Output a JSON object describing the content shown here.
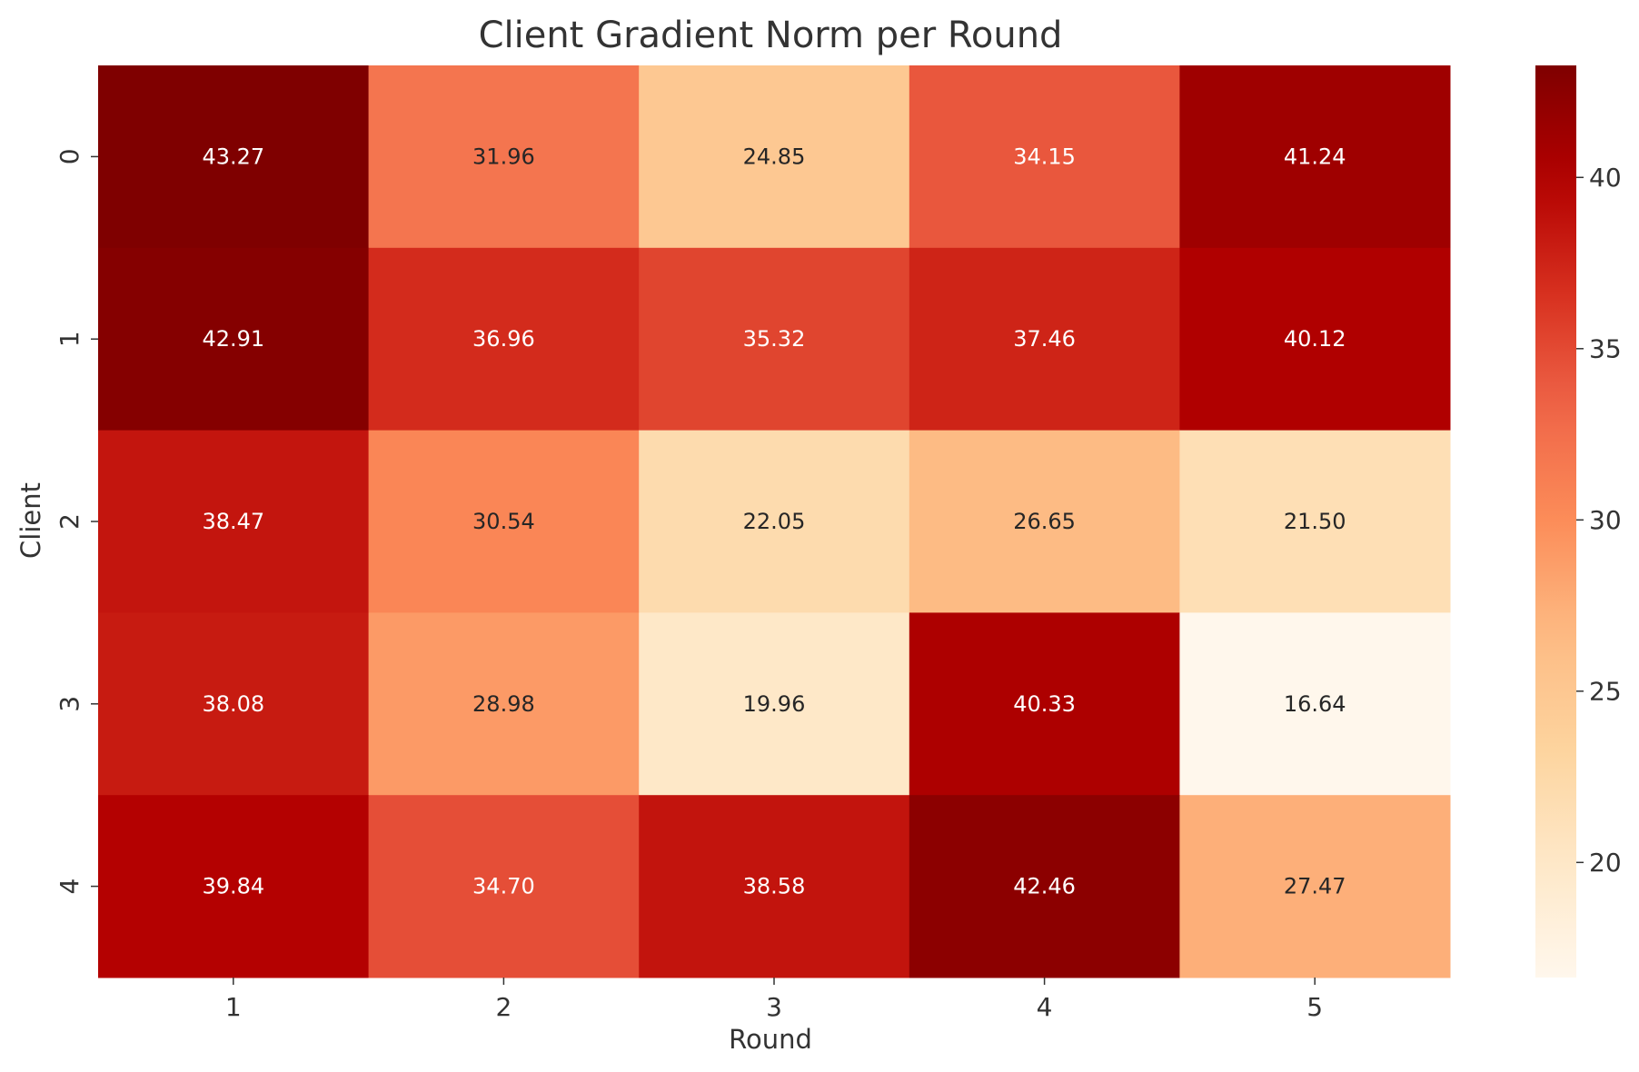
{
  "chart_data": {
    "type": "heatmap",
    "title": "Client Gradient Norm per Round",
    "xlabel": "Round",
    "ylabel": "Client",
    "x_categories": [
      "1",
      "2",
      "3",
      "4",
      "5"
    ],
    "y_categories": [
      "0",
      "1",
      "2",
      "3",
      "4"
    ],
    "values": [
      [
        43.27,
        31.96,
        24.85,
        34.15,
        41.24
      ],
      [
        42.91,
        36.96,
        35.32,
        37.46,
        40.12
      ],
      [
        38.47,
        30.54,
        22.05,
        26.65,
        21.5
      ],
      [
        38.08,
        28.98,
        19.96,
        40.33,
        16.64
      ],
      [
        39.84,
        34.7,
        38.58,
        42.46,
        27.47
      ]
    ],
    "value_format": "2 decimals",
    "colormap": "OrRd",
    "colorbar": {
      "range": [
        16.64,
        43.27
      ],
      "ticks": [
        20,
        25,
        30,
        35,
        40
      ],
      "placement": "right"
    },
    "grid": false
  }
}
